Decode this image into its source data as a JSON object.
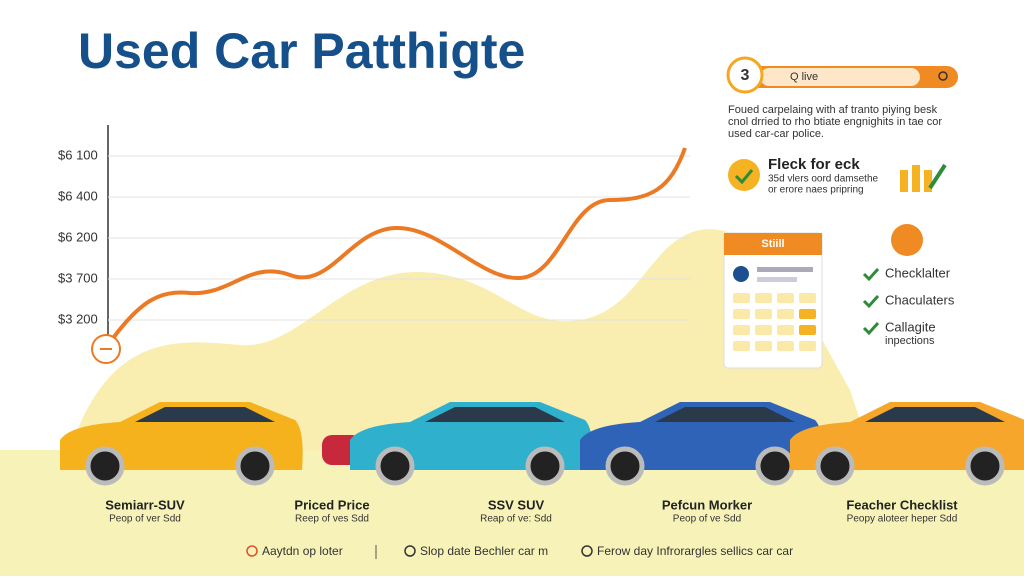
{
  "header": {
    "title": "Used Car Patthigte"
  },
  "search": {
    "badge": "3",
    "label": "Q live"
  },
  "description": [
    "Foued carpelaing with af tranto piying besk",
    "cnol drried to rho btiate engnighits in tae cor",
    "used car-car police."
  ],
  "feature": {
    "title": "Fleck for eck",
    "lines": [
      "35d vlers oord damsethe",
      "or erore naes pripring"
    ]
  },
  "card": {
    "header": "Stiill"
  },
  "checklist": [
    [
      "Checklalter"
    ],
    [
      "Chaculaters"
    ],
    [
      "Callagite",
      "inpections"
    ]
  ],
  "axis_labels": [
    "$6 100",
    "$6 400",
    "$6 200",
    "$3 700",
    "$3 200"
  ],
  "cars": [
    {
      "name": "Semiarr-SUV",
      "sub": "Peop of ver Sdd"
    },
    {
      "name": "Priced Price",
      "sub": "Reep of ves Sdd"
    },
    {
      "name": "SSV SUV",
      "sub": "Reap of ve: Sdd"
    },
    {
      "name": "Pefcun Morker",
      "sub": "Peop of ve Sdd"
    },
    {
      "name": "Feacher Checklist",
      "sub": "Peopy aloteer heper Sdd"
    }
  ],
  "footer": [
    "Aaytdn op loter",
    "Slop date Bechler car m",
    "Ferow day Infrorargles sellics car car"
  ]
}
